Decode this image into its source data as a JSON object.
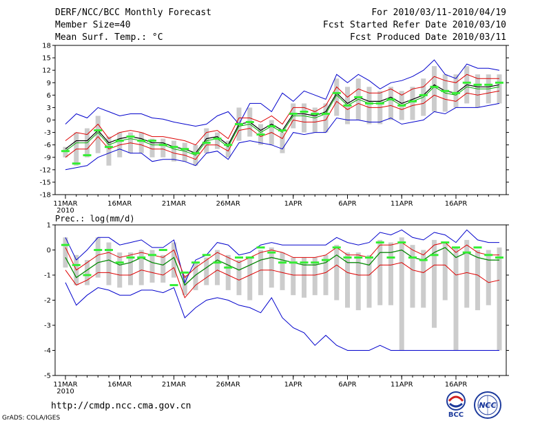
{
  "header": {
    "title": "DERF/NCC/BCC Monthly Forecast",
    "member_size": "Member Size=40",
    "variable": "Mean Surf. Temp.: °C",
    "period": "For 2010/03/11-2010/04/19",
    "started": "Fcst Started Refer Date 2010/03/10",
    "produced": "Fcst Produced Date 2010/03/11"
  },
  "footer": {
    "url": "http://cmdp.ncc.cma.gov.cn",
    "credit": "GrADS: COLA/IGES",
    "logo_bcc": "BCC",
    "logo_ncc": "NCC"
  },
  "colors": {
    "envelope": "#0000cc",
    "spread": "#dd0000",
    "mean": "#000000",
    "median": "#00aa00",
    "obs": "#33ee33",
    "box": "#cccccc"
  },
  "chart_data": [
    {
      "type": "line",
      "title": "Mean Surf. Temp.: °C",
      "x_tick_labels": [
        "11MAR",
        "16MAR",
        "21MAR",
        "26MAR",
        "1APR",
        "6APR",
        "11APR",
        "16APR"
      ],
      "x_year_label": "2010",
      "x_tick_index": [
        0,
        5,
        10,
        15,
        21,
        26,
        31,
        36
      ],
      "ylim": [
        -18,
        18
      ],
      "y_ticks": [
        -18,
        -15,
        -12,
        -9,
        -6,
        -3,
        0,
        3,
        6,
        9,
        12,
        15,
        18
      ],
      "series": [
        {
          "name": "max",
          "values": [
            -1,
            1.5,
            0.5,
            3,
            2,
            1,
            1.5,
            1.5,
            0.5,
            0.2,
            -0.5,
            -1,
            -1.5,
            -1,
            1,
            2,
            -1,
            4,
            4,
            2,
            6.5,
            4.5,
            7,
            6,
            5,
            11,
            9,
            11,
            9.5,
            7.5,
            9,
            9.5,
            10.5,
            12,
            14.5,
            11,
            10,
            13.5,
            12.5,
            12.5,
            12
          ]
        },
        {
          "name": "upper",
          "values": [
            -5,
            -3,
            -3.5,
            -1,
            -4.5,
            -3,
            -2.5,
            -3,
            -4,
            -4,
            -4.5,
            -5,
            -6,
            -3,
            -2.5,
            -4.5,
            0.5,
            0.5,
            -0.5,
            1,
            -1,
            3,
            3,
            2,
            3.5,
            8,
            5.5,
            7.5,
            6.5,
            6.5,
            7.5,
            6,
            7.5,
            8,
            10.5,
            9.5,
            9,
            11,
            10,
            10,
            10
          ]
        },
        {
          "name": "mean",
          "values": [
            -7,
            -5,
            -5,
            -2.5,
            -5.5,
            -4.5,
            -4,
            -4.5,
            -5.5,
            -5.5,
            -6.5,
            -7,
            -8,
            -4.5,
            -4,
            -6,
            -1,
            -0.5,
            -2.5,
            -1,
            -2.5,
            1.5,
            1.5,
            1,
            2,
            6.5,
            4,
            5.5,
            4.5,
            4.5,
            5.5,
            4,
            5,
            6,
            8.5,
            7,
            6.5,
            8.5,
            8,
            8,
            8.5
          ]
        },
        {
          "name": "median",
          "values": [
            -7.5,
            -5.5,
            -5.5,
            -3,
            -6,
            -5,
            -4.5,
            -5,
            -6,
            -6,
            -7,
            -7.5,
            -8.5,
            -5,
            -4.5,
            -6.5,
            -1.5,
            -1,
            -3,
            -1.5,
            -3,
            1,
            1,
            0.5,
            1.5,
            6,
            3.5,
            5,
            4,
            4,
            5,
            3.5,
            4.5,
            5.5,
            8,
            6.5,
            6,
            8,
            7.5,
            7.5,
            8
          ]
        },
        {
          "name": "lower",
          "values": [
            -9,
            -7,
            -7,
            -4,
            -7,
            -6,
            -5.5,
            -6,
            -7,
            -7,
            -8,
            -8.5,
            -9.5,
            -6,
            -6,
            -7.5,
            -2.5,
            -2,
            -4,
            -3,
            -4.5,
            0,
            -0.5,
            -0.5,
            0,
            4.5,
            2.5,
            4,
            3,
            3,
            3.5,
            2.5,
            3.5,
            4,
            6,
            5,
            4.5,
            6.5,
            6,
            6.5,
            7
          ]
        },
        {
          "name": "min",
          "values": [
            -12,
            -11.5,
            -11,
            -9,
            -8,
            -7,
            -8,
            -8,
            -10,
            -9.5,
            -9.5,
            -10,
            -11,
            -8,
            -7.5,
            -9.5,
            -5.5,
            -5,
            -5.5,
            -6,
            -7,
            -3,
            -3.5,
            -3,
            -3,
            0.5,
            0,
            0,
            -0.5,
            -0.5,
            0.5,
            -1,
            -0.5,
            0,
            2,
            1.5,
            3,
            3,
            3,
            3.5,
            4
          ]
        }
      ],
      "box_ranges": [
        [
          -9,
          -6.5
        ],
        [
          -11,
          -3
        ],
        [
          -9,
          -2
        ],
        [
          -8,
          1
        ],
        [
          -11,
          -4
        ],
        [
          -9,
          -3
        ],
        [
          -8,
          -3
        ],
        [
          -8,
          -3
        ],
        [
          -9,
          -4.5
        ],
        [
          -9,
          -4.5
        ],
        [
          -10,
          -5
        ],
        [
          -10,
          -5.5
        ],
        [
          -11,
          -6
        ],
        [
          -8,
          -2
        ],
        [
          -7,
          -3
        ],
        [
          -9,
          -5
        ],
        [
          -5,
          3
        ],
        [
          -4,
          3
        ],
        [
          -6,
          -1
        ],
        [
          -6,
          0
        ],
        [
          -8,
          -3
        ],
        [
          -2,
          4
        ],
        [
          -3,
          4
        ],
        [
          -3,
          3
        ],
        [
          -3,
          4
        ],
        [
          1,
          10
        ],
        [
          -1,
          8
        ],
        [
          0,
          10
        ],
        [
          -1,
          8
        ],
        [
          -1,
          7
        ],
        [
          0,
          8
        ],
        [
          0,
          7
        ],
        [
          0,
          8
        ],
        [
          1,
          10
        ],
        [
          2,
          13
        ],
        [
          2,
          11
        ],
        [
          3,
          11
        ],
        [
          4,
          13
        ],
        [
          3,
          11
        ],
        [
          4,
          11
        ],
        [
          4,
          11
        ]
      ],
      "observed": [
        -7.5,
        -10.5,
        -8.5,
        -2.5,
        -6.5,
        -5,
        -4,
        -5,
        -5,
        -6,
        -6.5,
        -7,
        -8,
        -5.5,
        -4.5,
        -6,
        -1,
        -0.5,
        -3.5,
        -1.5,
        -2.5,
        1.5,
        2,
        1.5,
        1.5,
        6.5,
        3.5,
        5.5,
        4,
        4,
        5,
        3.5,
        4.5,
        6,
        8,
        7,
        6.5,
        9,
        8.5,
        8.5,
        9
      ]
    },
    {
      "type": "line",
      "title": "Prec.: log(mm/d)",
      "x_tick_labels": [
        "11MAR",
        "16MAR",
        "21MAR",
        "26MAR",
        "1APR",
        "6APR",
        "11APR",
        "16APR"
      ],
      "x_year_label": "2010",
      "x_tick_index": [
        0,
        5,
        10,
        15,
        21,
        26,
        31,
        36
      ],
      "ylim": [
        -5,
        1
      ],
      "y_ticks": [
        -5,
        -4,
        -3,
        -2,
        -1,
        0,
        1
      ],
      "series": [
        {
          "name": "max",
          "values": [
            0.5,
            -0.4,
            0,
            0.5,
            0.5,
            0.2,
            0.3,
            0.4,
            0.1,
            0.1,
            0.4,
            -1.3,
            -0.4,
            -0.2,
            0.3,
            0.2,
            -0.2,
            -0.1,
            0.2,
            0.3,
            0.2,
            0.2,
            0.2,
            0.2,
            0.2,
            0.5,
            0.3,
            0.2,
            0.3,
            0.7,
            0.6,
            0.8,
            0.5,
            0.4,
            0.7,
            0.6,
            0.3,
            0.8,
            0.4,
            0.3,
            0.3
          ]
        },
        {
          "name": "upper",
          "values": [
            0.1,
            -0.8,
            -0.5,
            -0.2,
            -0.1,
            -0.3,
            -0.2,
            -0.1,
            -0.2,
            -0.3,
            0,
            -1.1,
            -0.7,
            -0.4,
            -0.1,
            -0.3,
            -0.5,
            -0.3,
            -0.1,
            0,
            -0.1,
            -0.3,
            -0.3,
            -0.3,
            -0.2,
            0.1,
            -0.2,
            -0.2,
            -0.3,
            0.2,
            0.2,
            0.3,
            0,
            -0.2,
            0.2,
            0.3,
            -0.1,
            0.2,
            -0.1,
            -0.2,
            -0.2
          ]
        },
        {
          "name": "mean",
          "values": [
            -0.3,
            -1.1,
            -0.8,
            -0.5,
            -0.4,
            -0.6,
            -0.5,
            -0.3,
            -0.5,
            -0.6,
            -0.3,
            -1.4,
            -1,
            -0.7,
            -0.4,
            -0.6,
            -0.8,
            -0.6,
            -0.4,
            -0.3,
            -0.4,
            -0.5,
            -0.6,
            -0.6,
            -0.5,
            -0.2,
            -0.5,
            -0.5,
            -0.6,
            -0.1,
            -0.1,
            0,
            -0.3,
            -0.4,
            -0.1,
            0.1,
            -0.3,
            -0.1,
            -0.3,
            -0.4,
            -0.4
          ]
        },
        {
          "name": "median",
          "values": [
            -0.3,
            -1.1,
            -0.8,
            -0.5,
            -0.4,
            -0.6,
            -0.5,
            -0.3,
            -0.5,
            -0.6,
            -0.3,
            -1.4,
            -1,
            -0.7,
            -0.4,
            -0.6,
            -0.8,
            -0.6,
            -0.4,
            -0.3,
            -0.4,
            -0.5,
            -0.6,
            -0.6,
            -0.5,
            -0.2,
            -0.5,
            -0.5,
            -0.6,
            -0.1,
            -0.1,
            0,
            -0.3,
            -0.4,
            -0.1,
            0.1,
            -0.3,
            -0.1,
            -0.3,
            -0.4,
            -0.4
          ]
        },
        {
          "name": "lower",
          "values": [
            -0.8,
            -1.4,
            -1.2,
            -0.9,
            -0.9,
            -1,
            -1,
            -0.8,
            -0.9,
            -1,
            -0.7,
            -1.9,
            -1.4,
            -1.1,
            -0.8,
            -1,
            -1.2,
            -1,
            -0.8,
            -0.8,
            -0.9,
            -1,
            -1,
            -1,
            -0.9,
            -0.6,
            -0.9,
            -1,
            -1,
            -0.6,
            -0.6,
            -0.5,
            -0.8,
            -0.9,
            -0.6,
            -0.6,
            -1,
            -0.9,
            -1,
            -1.3,
            -1.2
          ]
        },
        {
          "name": "min",
          "values": [
            -1.3,
            -2.2,
            -1.8,
            -1.5,
            -1.6,
            -1.8,
            -1.8,
            -1.6,
            -1.6,
            -1.7,
            -1.5,
            -2.7,
            -2.3,
            -2,
            -1.9,
            -2,
            -2.2,
            -2.3,
            -2.5,
            -1.9,
            -2.7,
            -3.1,
            -3.3,
            -3.8,
            -3.4,
            -3.8,
            -4,
            -4,
            -4,
            -3.8,
            -4,
            -4,
            -4,
            -4,
            -4,
            -4,
            -4,
            -4,
            -4,
            -4,
            -4
          ]
        }
      ],
      "box_ranges": [
        [
          -0.7,
          0.5
        ],
        [
          -1.4,
          -0.2
        ],
        [
          -1.4,
          -0.4
        ],
        [
          -1.1,
          0.5
        ],
        [
          -1.4,
          0.3
        ],
        [
          -1.5,
          -0.1
        ],
        [
          -1.4,
          -0.1
        ],
        [
          -1.4,
          0
        ],
        [
          -1.3,
          0
        ],
        [
          -1.3,
          -0.2
        ],
        [
          -1.1,
          0.3
        ],
        [
          -1.8,
          -1
        ],
        [
          -1.6,
          -0.5
        ],
        [
          -1.4,
          -0.3
        ],
        [
          -1.4,
          0
        ],
        [
          -1.6,
          -0.2
        ],
        [
          -1.8,
          -0.4
        ],
        [
          -2,
          -0.3
        ],
        [
          -1.8,
          0
        ],
        [
          -1.5,
          0.1
        ],
        [
          -1.6,
          -0.1
        ],
        [
          -1.8,
          -0.3
        ],
        [
          -1.9,
          -0.3
        ],
        [
          -1.8,
          -0.3
        ],
        [
          -1.8,
          -0.2
        ],
        [
          -2,
          0.2
        ],
        [
          -2.3,
          -0.1
        ],
        [
          -2.4,
          -0.1
        ],
        [
          -2.3,
          -0.2
        ],
        [
          -2.2,
          0.4
        ],
        [
          -2.2,
          0.3
        ],
        [
          -4,
          0.5
        ],
        [
          -2.3,
          0.2
        ],
        [
          -2.3,
          0
        ],
        [
          -3.1,
          0.4
        ],
        [
          -2,
          0.3
        ],
        [
          -4,
          0.1
        ],
        [
          -2.3,
          0.4
        ],
        [
          -2.4,
          0
        ],
        [
          -2.2,
          0
        ],
        [
          -4,
          0.1
        ]
      ],
      "observed": [
        0.2,
        -0.6,
        -1,
        0,
        0,
        -0.5,
        -0.3,
        -0.3,
        -0.2,
        0,
        -1.4,
        -0.9,
        -0.5,
        -0.2,
        -0.5,
        -0.7,
        -0.3,
        -0.3,
        0.1,
        -0.1,
        -0.5,
        -0.5,
        -0.5,
        -0.5,
        -0.4,
        0.1,
        -0.3,
        -0.3,
        -0.3,
        0.3,
        -0.3,
        0.3,
        -0.3,
        -0.4,
        -0.2,
        0.3,
        0.1,
        -0.1,
        0.1,
        -0.2,
        -0.3
      ]
    }
  ]
}
